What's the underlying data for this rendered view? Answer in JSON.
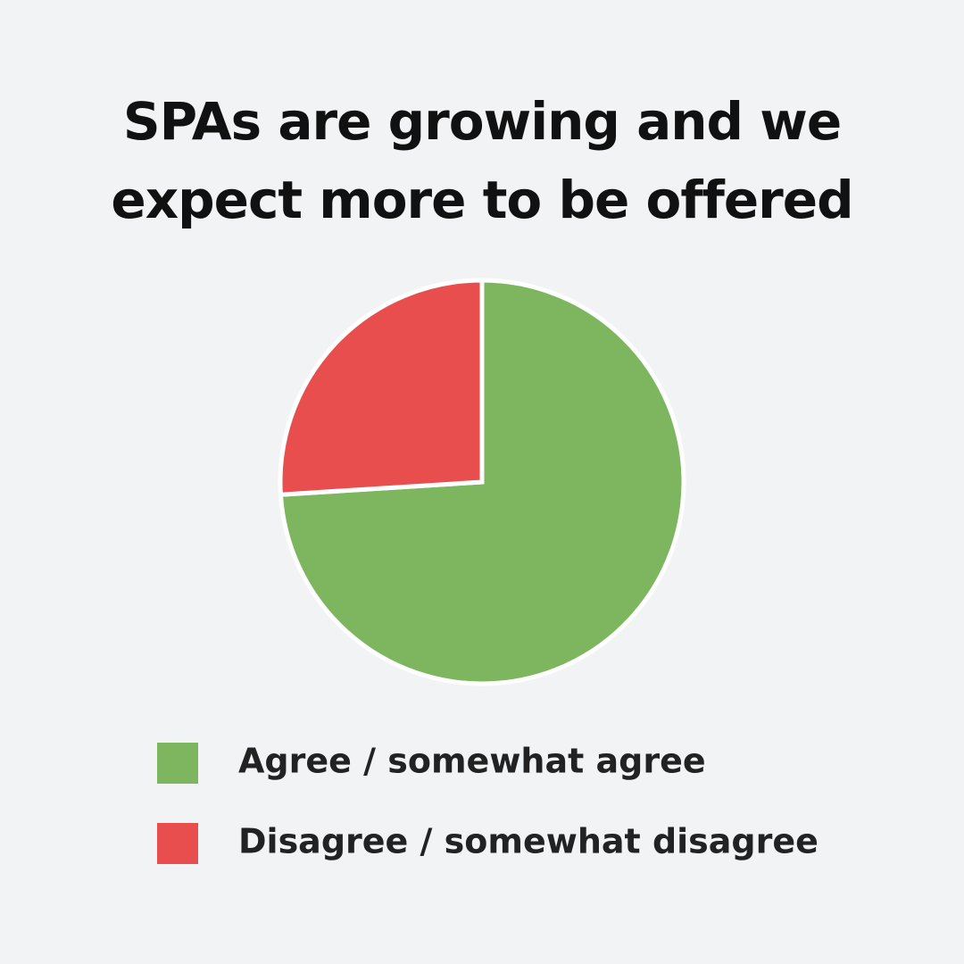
{
  "chart_data": {
    "type": "pie",
    "title": "SPAs are growing and we expect more to be offered",
    "categories": [
      "Agree / somewhat agree",
      "Disagree / somewhat disagree"
    ],
    "values": [
      74,
      26
    ],
    "colors": [
      "#7db65e",
      "#e84e4e"
    ],
    "legend": "bottom"
  }
}
